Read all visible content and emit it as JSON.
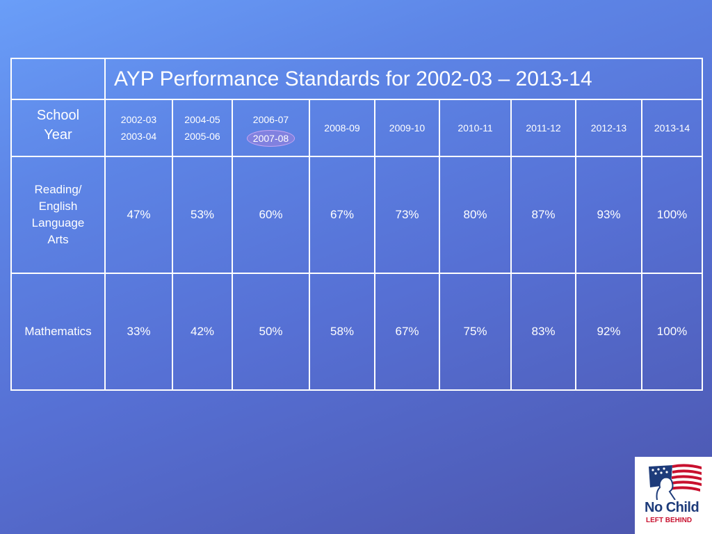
{
  "title": "AYP Performance Standards for 2002-03  –  2013-14",
  "school_year_label": [
    "School",
    "Year"
  ],
  "years": [
    {
      "line1": "2002-03",
      "line2": "2003-04"
    },
    {
      "line1": "2004-05",
      "line2": "2005-06"
    },
    {
      "line1": "2006-07",
      "line2": "2007-08",
      "highlighted": true
    },
    {
      "line1": "2008-09",
      "line2": ""
    },
    {
      "line1": "2009-10",
      "line2": ""
    },
    {
      "line1": "2010-11",
      "line2": ""
    },
    {
      "line1": "2011-12",
      "line2": ""
    },
    {
      "line1": "2012-13",
      "line2": ""
    },
    {
      "line1": "2013-14",
      "line2": ""
    }
  ],
  "reading": {
    "label": [
      "Reading/",
      "English",
      "Language",
      "Arts"
    ],
    "values": [
      "47%",
      "53%",
      "60%",
      "67%",
      "73%",
      "80%",
      "87%",
      "93%",
      "100%"
    ]
  },
  "math": {
    "label": "Mathematics",
    "values": [
      "33%",
      "42%",
      "50%",
      "58%",
      "67%",
      "75%",
      "83%",
      "92%",
      "100%"
    ]
  },
  "logo": {
    "line1": "No Child",
    "line2": "LEFT BEHIND",
    "colors": {
      "navy": "#1d3b7a",
      "red": "#c8102e"
    }
  },
  "colors": {
    "background_top": "#6a9ef8",
    "background_bottom": "#4c55ad",
    "highlight_fill": "#a082dc"
  }
}
